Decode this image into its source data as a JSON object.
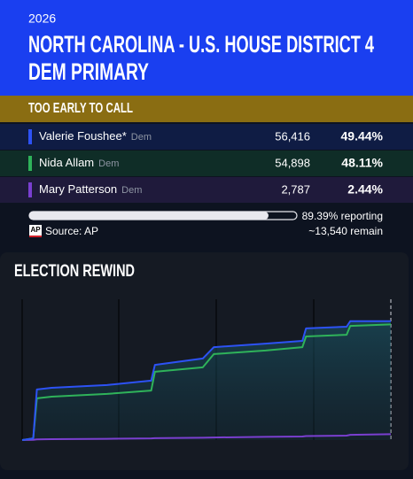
{
  "header": {
    "year": "2026",
    "title_lines": [
      "NORTH CAROLINA - U.S. HOUSE DISTRICT 4",
      "DEM PRIMARY"
    ]
  },
  "status": "TOO EARLY TO CALL",
  "candidates": [
    {
      "name": "Valerie Foushee*",
      "party": "Dem",
      "votes": "56,416",
      "pct": "49.44%",
      "color": "#2d52f5",
      "background": "#0f1c44"
    },
    {
      "name": "Nida Allam",
      "party": "Dem",
      "votes": "54,898",
      "pct": "48.11%",
      "color": "#2fb35a",
      "background": "#0f2d27"
    },
    {
      "name": "Mary Patterson",
      "party": "Dem",
      "votes": "2,787",
      "pct": "2.44%",
      "color": "#7a3fd0",
      "background": "#1f1a3b"
    }
  ],
  "reporting": {
    "value": 89.39,
    "label": "89.39% reporting"
  },
  "remain": "~13,540 remain",
  "source": {
    "logo": "AP",
    "text": "Source: AP"
  },
  "chart_data": {
    "type": "line",
    "title": "ELECTION REWIND",
    "x": [
      0,
      3,
      4,
      8,
      23,
      35,
      36,
      49,
      52,
      66,
      76,
      77,
      88,
      89,
      100
    ],
    "xlim": [
      0,
      100
    ],
    "ylim": [
      0,
      66000
    ],
    "series": [
      {
        "name": "Valerie Foushee*",
        "color": "#2d52f5",
        "values": [
          0,
          800,
          24000,
          24800,
          26100,
          28200,
          35700,
          38700,
          44100,
          45800,
          47100,
          53000,
          53800,
          56400,
          56416
        ]
      },
      {
        "name": "Nida Allam",
        "color": "#2fb35a",
        "values": [
          0,
          800,
          19800,
          20600,
          21900,
          23500,
          32400,
          34500,
          40800,
          42500,
          44100,
          49200,
          50000,
          54200,
          54898
        ]
      },
      {
        "name": "Mary Patterson",
        "color": "#7a3fd0",
        "values": [
          0,
          100,
          300,
          400,
          600,
          800,
          900,
          1100,
          1200,
          1500,
          1700,
          1900,
          2100,
          2500,
          2787
        ]
      }
    ]
  }
}
